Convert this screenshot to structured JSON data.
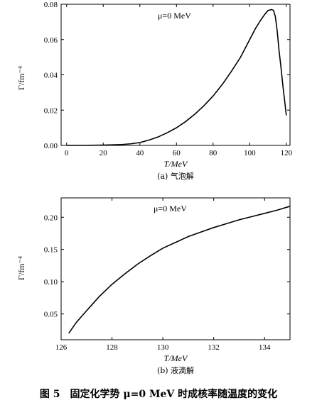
{
  "figure_caption": "图 5　固定化学势 μ=0 MeV 时成核率随温度的变化",
  "chart_data": [
    {
      "type": "line",
      "subcaption": "(a) 气泡解",
      "annotation": "μ=0 MeV",
      "xlabel": "T/MeV",
      "ylabel": "Γ/fm⁻⁴",
      "xlim": [
        -3,
        122
      ],
      "ylim": [
        0,
        0.08
      ],
      "xticks": [
        0,
        20,
        40,
        60,
        80,
        100,
        120
      ],
      "yticks": [
        0.0,
        0.02,
        0.04,
        0.06,
        0.08
      ],
      "ytick_labels": [
        "0.00",
        "0.02",
        "0.04",
        "0.06",
        "0.08"
      ],
      "series": [
        {
          "x": [
            0,
            10,
            20,
            30,
            35,
            40,
            45,
            50,
            55,
            60,
            65,
            70,
            75,
            80,
            85,
            90,
            95,
            100,
            103,
            106,
            108,
            110,
            112,
            113,
            114,
            115,
            116,
            117,
            118,
            119,
            120
          ],
          "y": [
            0.0,
            0.0,
            0.0002,
            0.0005,
            0.0009,
            0.0016,
            0.003,
            0.0048,
            0.0072,
            0.01,
            0.0135,
            0.0177,
            0.0225,
            0.028,
            0.0345,
            0.042,
            0.05,
            0.06,
            0.066,
            0.071,
            0.074,
            0.0765,
            0.077,
            0.0765,
            0.073,
            0.065,
            0.054,
            0.045,
            0.035,
            0.026,
            0.017
          ]
        }
      ]
    },
    {
      "type": "line",
      "subcaption": "(b) 液滴解",
      "annotation": "μ=0 MeV",
      "xlabel": "T/MeV",
      "ylabel": "Γ/fm⁻⁴",
      "xlim": [
        126,
        135
      ],
      "ylim": [
        0.01,
        0.23
      ],
      "xticks": [
        126,
        128,
        130,
        132,
        134
      ],
      "yticks": [
        0.05,
        0.1,
        0.15,
        0.2
      ],
      "ytick_labels": [
        "0.05",
        "0.10",
        "0.15",
        "0.20"
      ],
      "series": [
        {
          "x": [
            126.3,
            126.6,
            127,
            127.5,
            128,
            128.5,
            129,
            129.5,
            130,
            130.5,
            131,
            131.5,
            132,
            132.5,
            133,
            133.5,
            134,
            134.5,
            135
          ],
          "y": [
            0.02,
            0.037,
            0.055,
            0.077,
            0.096,
            0.112,
            0.127,
            0.14,
            0.152,
            0.161,
            0.17,
            0.177,
            0.184,
            0.19,
            0.196,
            0.201,
            0.206,
            0.211,
            0.217
          ]
        }
      ]
    }
  ]
}
